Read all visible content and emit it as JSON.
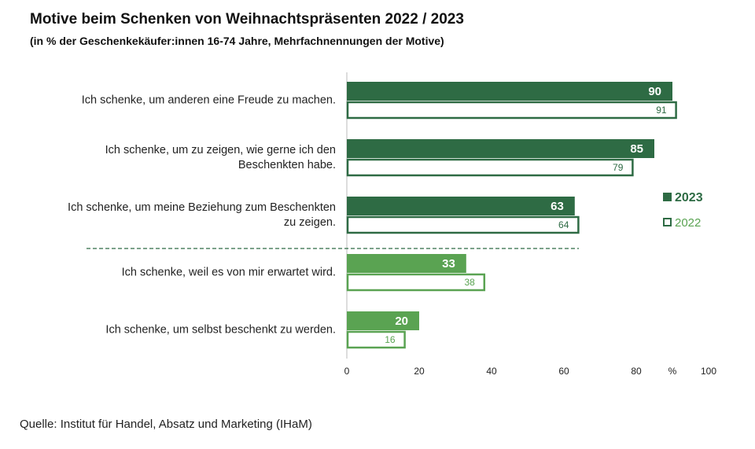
{
  "chart_data": {
    "type": "bar",
    "orientation": "horizontal",
    "title": "Motive beim Schenken von Weihnachtspräsenten 2022 / 2023",
    "subtitle": "(in % der Geschenkekäufer:innen 16-74 Jahre, Mehrfachnennungen der Motive)",
    "categories": [
      "Ich schenke, um anderen eine Freude zu machen.",
      "Ich schenke, um zu zeigen, wie gerne ich den\nBeschenkten habe.",
      "Ich schenke, um meine Beziehung zum Beschenkten\nzu zeigen.",
      "Ich schenke, weil es von mir erwartet wird.",
      "Ich schenke, um selbst beschenkt zu werden."
    ],
    "colors": [
      "#2e6b44",
      "#2e6b44",
      "#2e6b44",
      "#5aa352",
      "#5aa352"
    ],
    "series": [
      {
        "name": "2023",
        "style": "filled",
        "values": [
          90,
          85,
          63,
          33,
          20
        ]
      },
      {
        "name": "2022",
        "style": "outline",
        "values": [
          91,
          79,
          64,
          38,
          16
        ]
      }
    ],
    "xlim": [
      0,
      100
    ],
    "xticks": [
      0,
      20,
      40,
      60,
      80,
      100
    ],
    "x_unit": "%",
    "source": "Quelle: Institut für Handel, Absatz und Marketing (IHaM)"
  }
}
